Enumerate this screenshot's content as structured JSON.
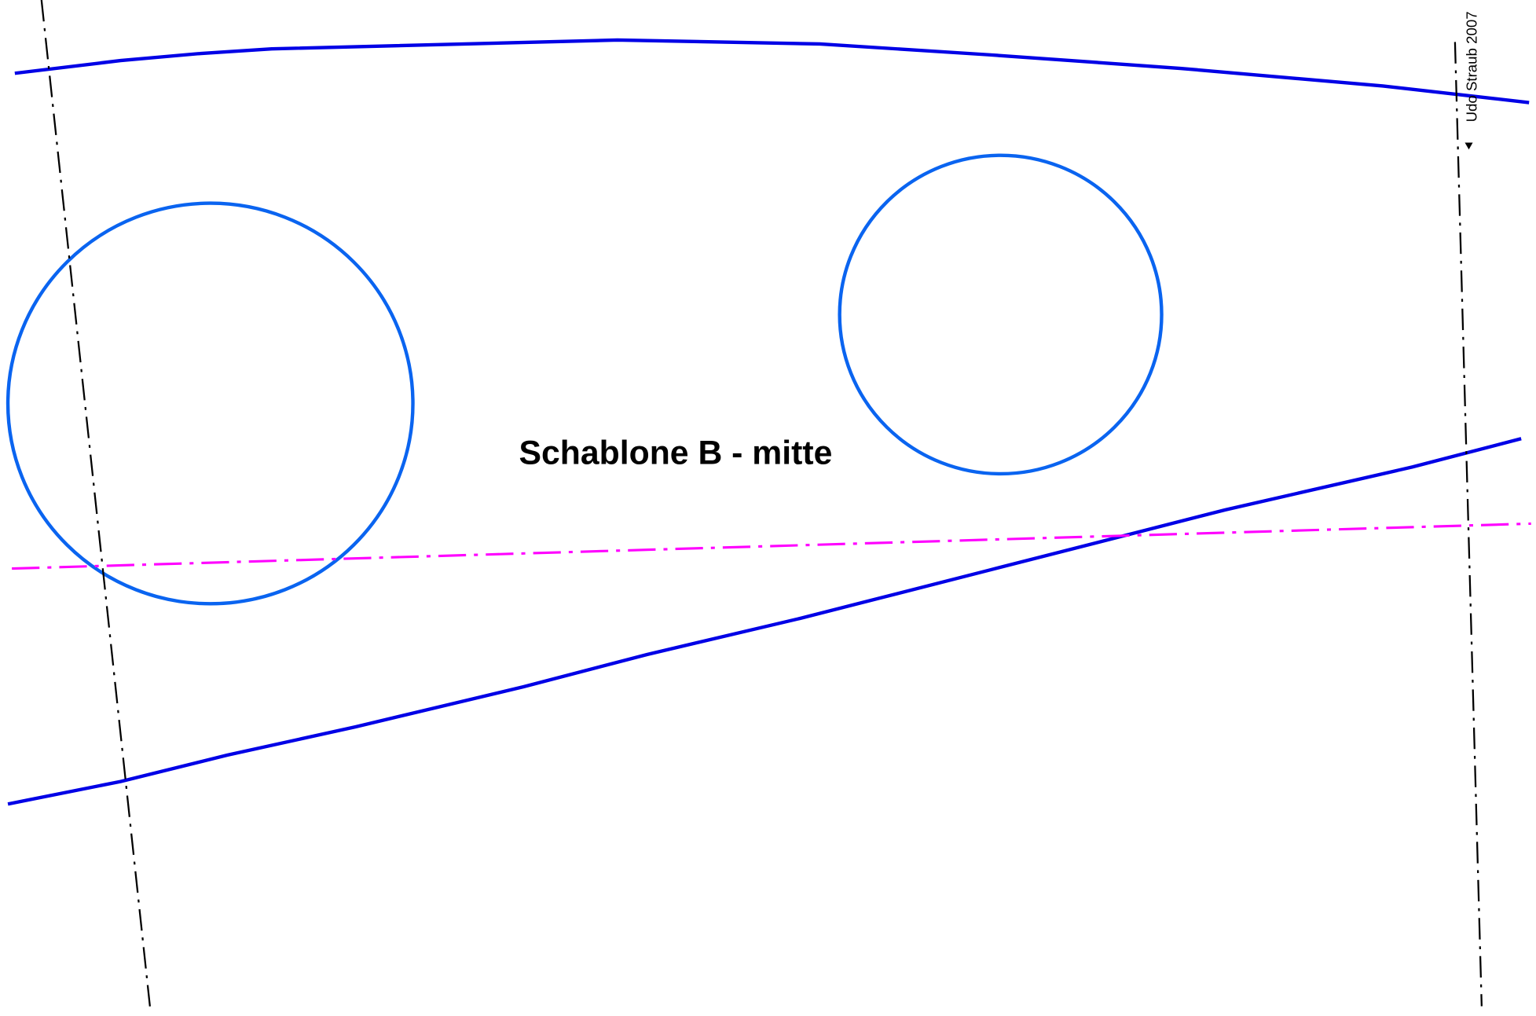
{
  "drawing": {
    "title": "Schablone B - mitte",
    "watermark": "Udo Straub 2007"
  }
}
